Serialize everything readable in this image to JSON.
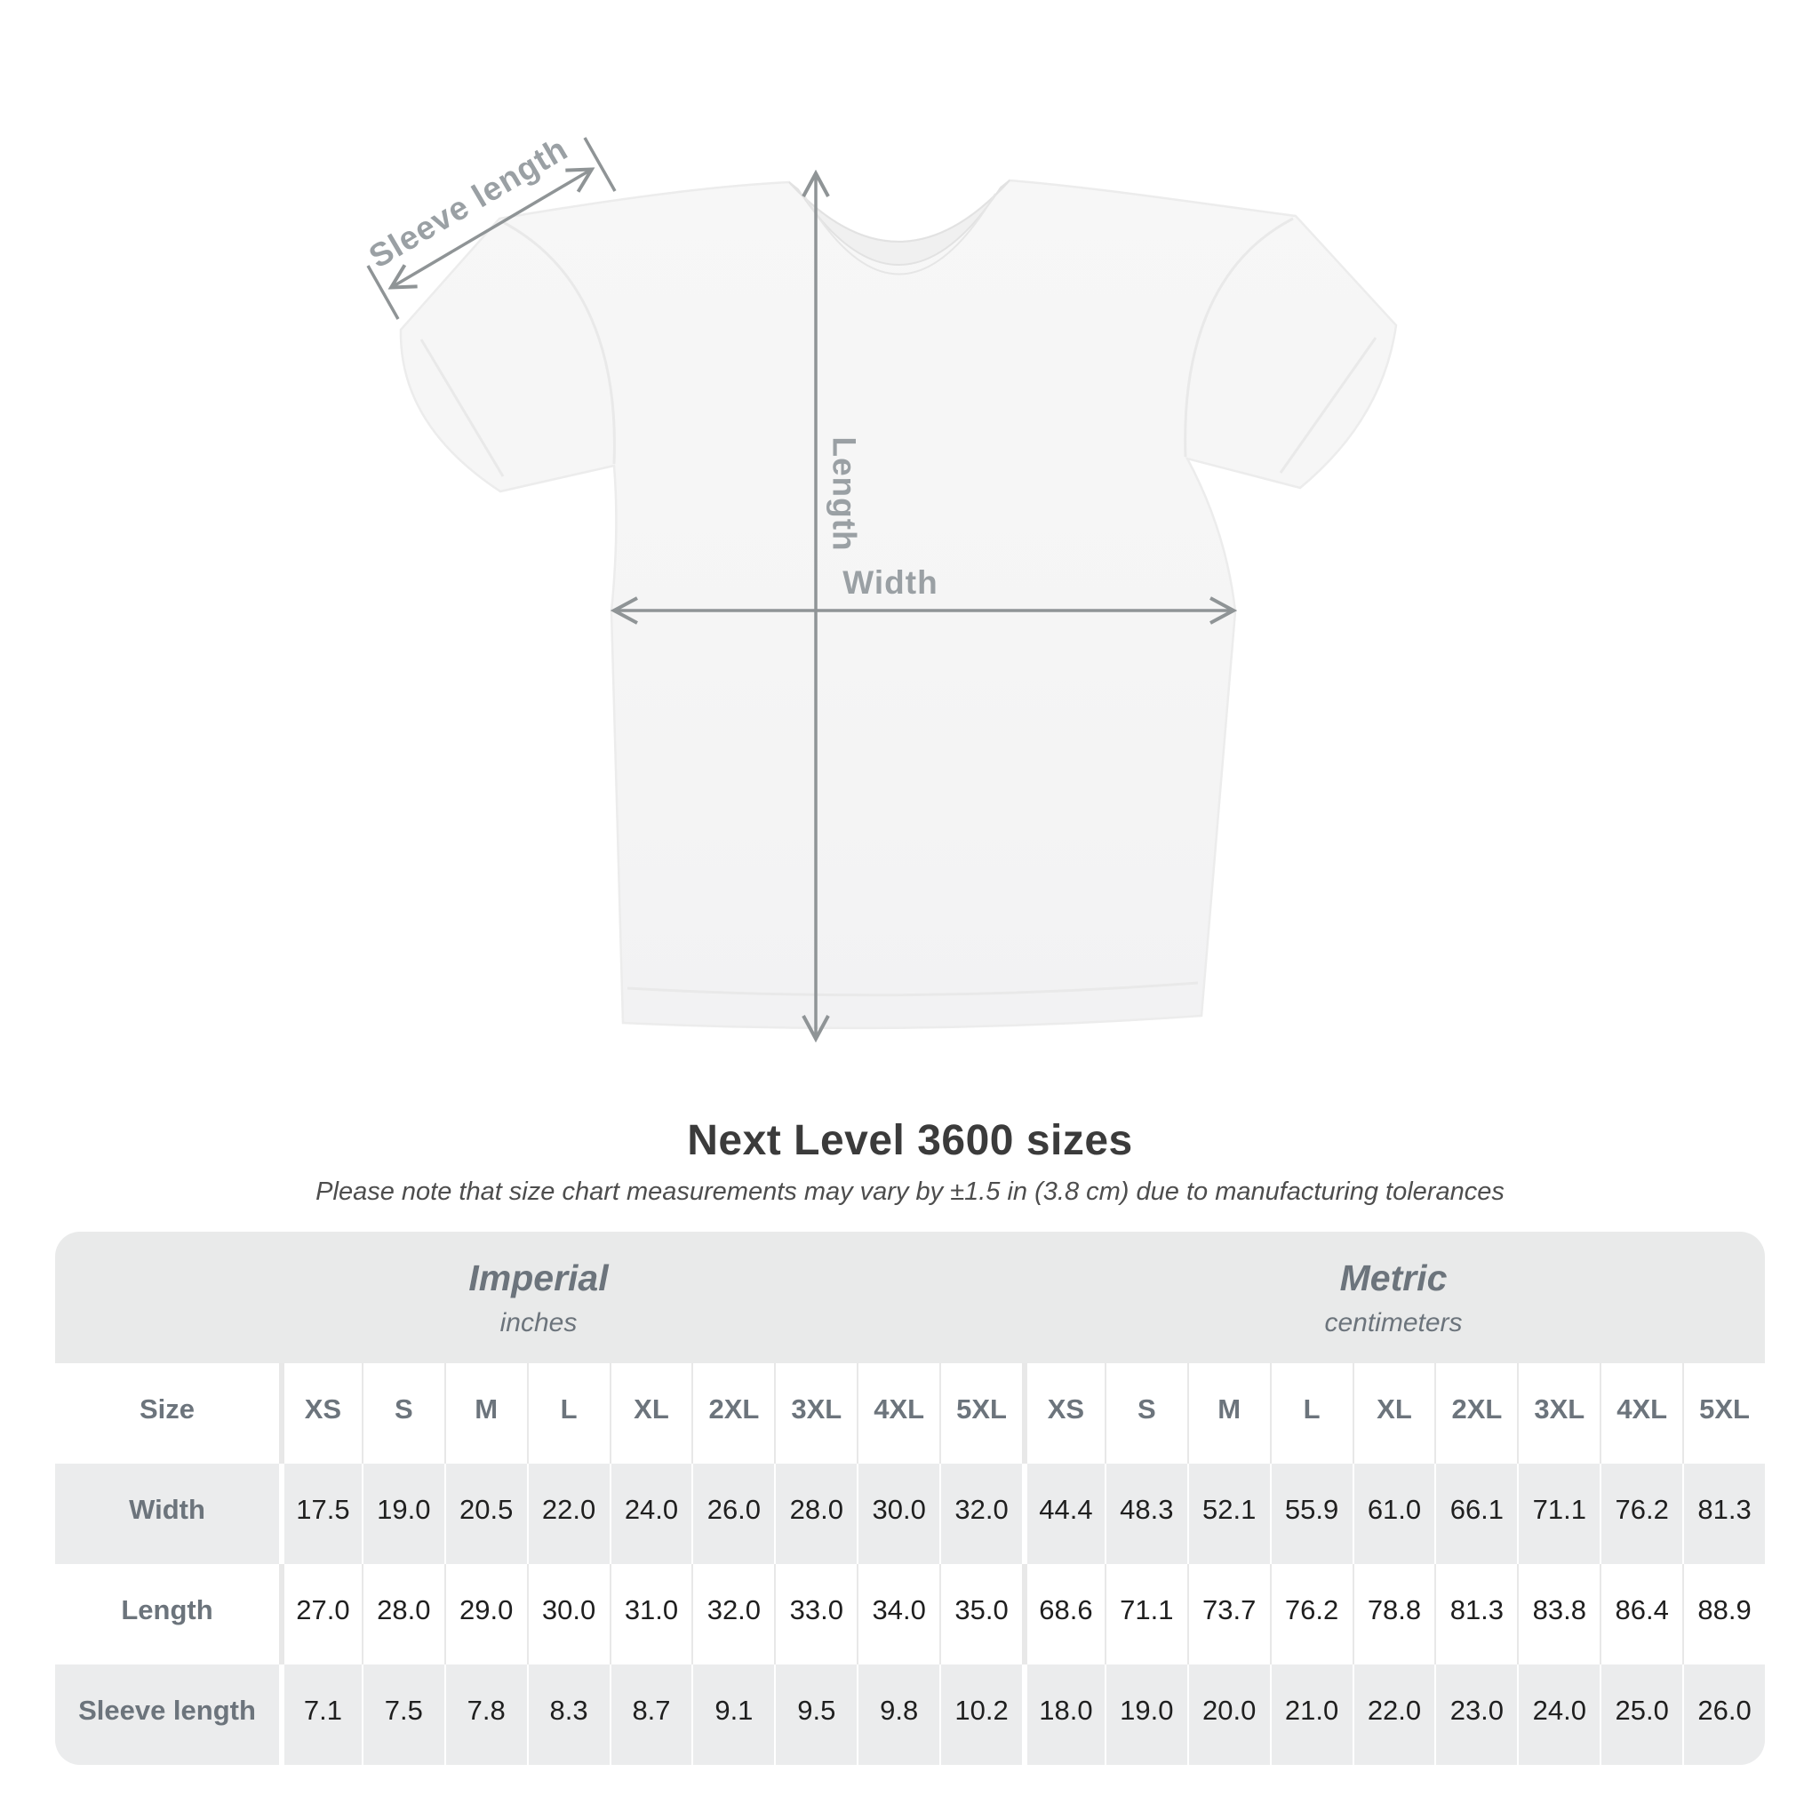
{
  "diagram": {
    "sleeve_label": "Sleeve length",
    "length_label": "Length",
    "width_label": "Width"
  },
  "title": "Next Level 3600 sizes",
  "subtitle": "Please note that size chart measurements may vary by ±1.5 in (3.8 cm) due to manufacturing tolerances",
  "table": {
    "size_label": "Size",
    "unit_groups": [
      {
        "name": "Imperial",
        "unit": "inches"
      },
      {
        "name": "Metric",
        "unit": "centimeters"
      }
    ],
    "sizes": [
      "XS",
      "S",
      "M",
      "L",
      "XL",
      "2XL",
      "3XL",
      "4XL",
      "5XL"
    ],
    "rows": [
      {
        "label": "Width",
        "imperial": [
          "17.5",
          "19.0",
          "20.5",
          "22.0",
          "24.0",
          "26.0",
          "28.0",
          "30.0",
          "32.0"
        ],
        "metric": [
          "44.4",
          "48.3",
          "52.1",
          "55.9",
          "61.0",
          "66.1",
          "71.1",
          "76.2",
          "81.3"
        ]
      },
      {
        "label": "Length",
        "imperial": [
          "27.0",
          "28.0",
          "29.0",
          "30.0",
          "31.0",
          "32.0",
          "33.0",
          "34.0",
          "35.0"
        ],
        "metric": [
          "68.6",
          "71.1",
          "73.7",
          "76.2",
          "78.8",
          "81.3",
          "83.8",
          "86.4",
          "88.9"
        ]
      },
      {
        "label": "Sleeve length",
        "imperial": [
          "7.1",
          "7.5",
          "7.8",
          "8.3",
          "8.7",
          "9.1",
          "9.5",
          "9.8",
          "10.2"
        ],
        "metric": [
          "18.0",
          "19.0",
          "20.0",
          "21.0",
          "22.0",
          "23.0",
          "24.0",
          "25.0",
          "26.0"
        ]
      }
    ]
  },
  "colors": {
    "band_gray": "#e9eaea",
    "row_gray": "#ebeced",
    "label_gray": "#6c747c",
    "arrow_gray": "#8f9496",
    "shirt_fill": "#f6f6f6",
    "number_dark": "#1f1f1f"
  },
  "chart_data": {
    "type": "table",
    "title": "Next Level 3600 sizes",
    "note": "Please note that size chart measurements may vary by ±1.5 in (3.8 cm) due to manufacturing tolerances",
    "unit_groups": [
      "Imperial (inches)",
      "Metric (centimeters)"
    ],
    "columns": [
      "Size",
      "XS",
      "S",
      "M",
      "L",
      "XL",
      "2XL",
      "3XL",
      "4XL",
      "5XL"
    ],
    "imperial_rows": [
      [
        "Width",
        17.5,
        19.0,
        20.5,
        22.0,
        24.0,
        26.0,
        28.0,
        30.0,
        32.0
      ],
      [
        "Length",
        27.0,
        28.0,
        29.0,
        30.0,
        31.0,
        32.0,
        33.0,
        34.0,
        35.0
      ],
      [
        "Sleeve length",
        7.1,
        7.5,
        7.8,
        8.3,
        8.7,
        9.1,
        9.5,
        9.8,
        10.2
      ]
    ],
    "metric_rows": [
      [
        "Width",
        44.4,
        48.3,
        52.1,
        55.9,
        61.0,
        66.1,
        71.1,
        76.2,
        81.3
      ],
      [
        "Length",
        68.6,
        71.1,
        73.7,
        76.2,
        78.8,
        81.3,
        83.8,
        86.4,
        88.9
      ],
      [
        "Sleeve length",
        18.0,
        19.0,
        20.0,
        21.0,
        22.0,
        23.0,
        24.0,
        25.0,
        26.0
      ]
    ]
  }
}
